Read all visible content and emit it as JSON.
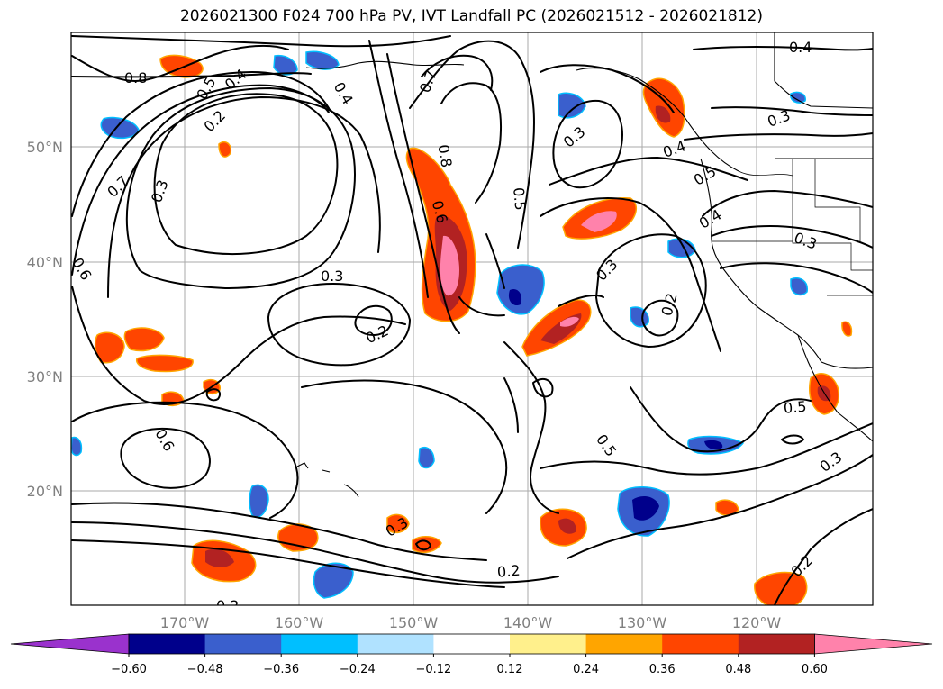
{
  "title": "2026021300 F024 700 hPa PV, IVT Landfall PC (2026021512 - 2026021812)",
  "lat_labels": [
    "50°N",
    "40°N",
    "30°N",
    "20°N"
  ],
  "lon_labels": [
    "170°W",
    "160°W",
    "150°W",
    "140°W",
    "130°W",
    "120°W"
  ],
  "contour_labels": [
    "0.8",
    "0.5",
    "0.4",
    "0.2",
    "0.4",
    "0.7",
    "0.3",
    "0.6",
    "0.3",
    "0.2",
    "0.7",
    "0.8",
    "0.6",
    "0.5",
    "0.3",
    "0.2",
    "0.3",
    "0.4",
    "0.3",
    "0.4",
    "0.5",
    "0.4",
    "0.3",
    "0.5",
    "0.3",
    "0.2",
    "0.5",
    "0.6",
    "0.3",
    "0.2",
    "0.2"
  ],
  "colorbar": {
    "ticks": [
      "−0.60",
      "−0.48",
      "−0.36",
      "−0.24",
      "−0.12",
      "0.12",
      "0.24",
      "0.36",
      "0.48",
      "0.60"
    ],
    "colors": [
      "#9a32cd",
      "#00008b",
      "#3a5fcd",
      "#00bfff",
      "#b0e2ff",
      "#ffffff",
      "#fff08c",
      "#ffa500",
      "#ff4500",
      "#b22222",
      "#ff82ab"
    ]
  }
}
